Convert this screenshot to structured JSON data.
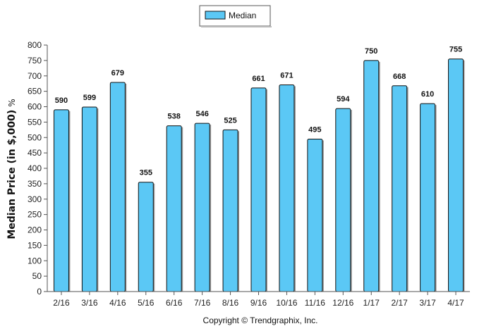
{
  "chart_data": {
    "type": "bar",
    "categories": [
      "2/16",
      "3/16",
      "4/16",
      "5/16",
      "6/16",
      "7/16",
      "8/16",
      "9/16",
      "10/16",
      "11/16",
      "12/16",
      "1/17",
      "2/17",
      "3/17",
      "4/17"
    ],
    "series": [
      {
        "name": "Median",
        "values": [
          590,
          599,
          679,
          355,
          538,
          546,
          525,
          661,
          671,
          495,
          594,
          750,
          668,
          610,
          755
        ]
      }
    ],
    "data_labels": [
      "590",
      "599",
      "679",
      "355",
      "538",
      "546",
      "525",
      "661",
      "671",
      "495",
      "594",
      "750",
      "668",
      "610",
      "755"
    ],
    "ylabel": "Median Price (in $,000)",
    "ylabel_suffix": "%",
    "ylim": [
      0,
      800
    ],
    "yticks": [
      0,
      50,
      100,
      150,
      200,
      250,
      300,
      350,
      400,
      450,
      500,
      550,
      600,
      650,
      700,
      750,
      800
    ],
    "grid": false,
    "legend_position": "top-center",
    "bar_color": "#5bc8f5",
    "bar_edge_color": "#111111"
  },
  "legend": {
    "label": "Median"
  },
  "footer": {
    "copyright": "Copyright © Trendgraphix, Inc."
  }
}
